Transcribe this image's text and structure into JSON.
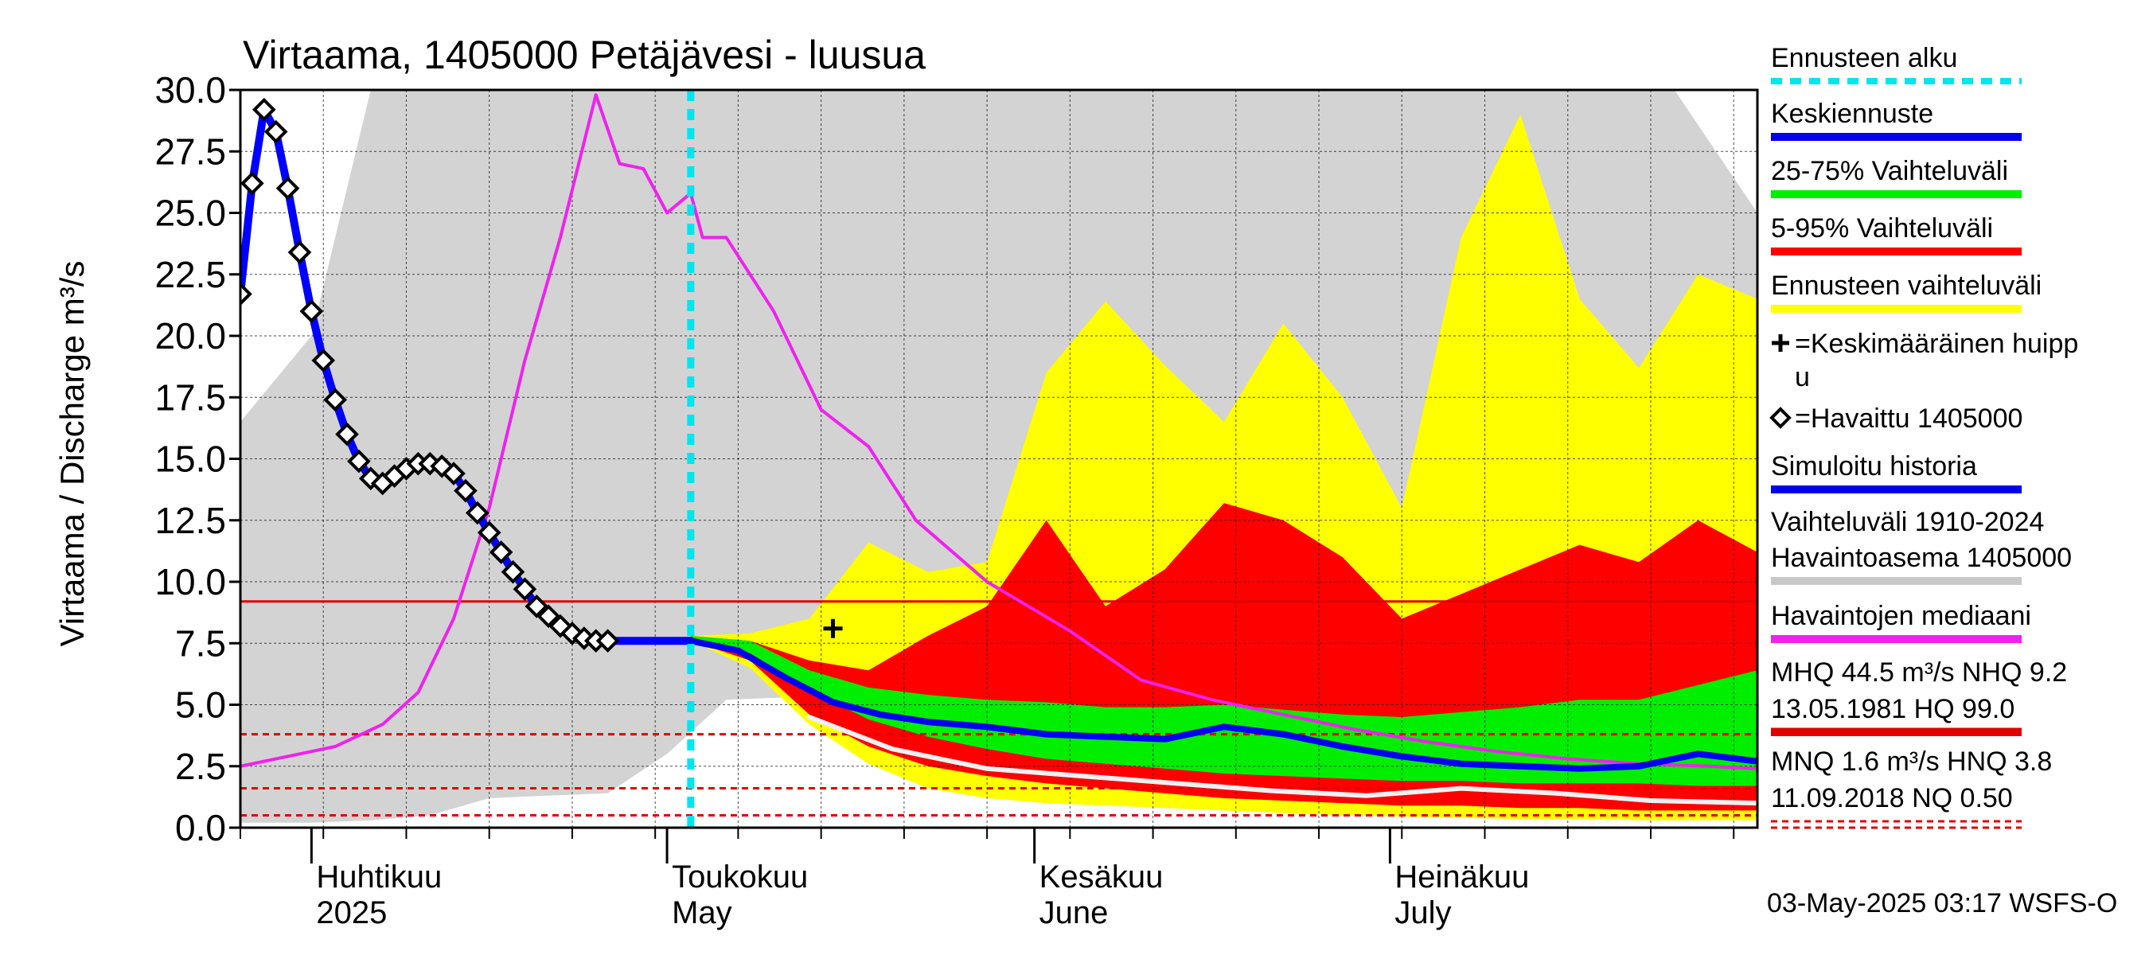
{
  "chart_data": {
    "type": "area",
    "title": "Virtaama, 1405000 Petäjävesi - luusua",
    "ylabel": "Virtaama / Discharge   m³/s",
    "ylim": [
      0,
      30
    ],
    "xlim": [
      "2025-03-26",
      "2025-08-01"
    ],
    "grid": true,
    "legend_placement": "right",
    "y_ticks": [
      "0.0",
      "2.5",
      "5.0",
      "7.5",
      "10.0",
      "12.5",
      "15.0",
      "17.5",
      "20.0",
      "22.5",
      "25.0",
      "27.5",
      "30.0"
    ],
    "month_labels": [
      {
        "date": "2025-04-01",
        "line1": "Huhtikuu",
        "line2": "2025"
      },
      {
        "date": "2025-05-01",
        "line1": "Toukokuu",
        "line2": "May"
      },
      {
        "date": "2025-06-01",
        "line1": "Kesäkuu",
        "line2": "June"
      },
      {
        "date": "2025-07-01",
        "line1": "Heinäkuu",
        "line2": "July"
      }
    ],
    "forecast_start": "2025-05-03",
    "reference_lines": [
      {
        "name": "NHQ",
        "value": 9.2,
        "style": "solid",
        "color": "#e00000"
      },
      {
        "name": "HNQ",
        "value": 3.8,
        "style": "dashed",
        "color": "#e00000"
      },
      {
        "name": "MNQ",
        "value": 1.6,
        "style": "dashed",
        "color": "#e00000"
      },
      {
        "name": "NQ",
        "value": 0.5,
        "style": "dashed",
        "color": "#e00000"
      }
    ],
    "average_peak": {
      "date": "2025-05-15",
      "value": 8.1
    },
    "x_dates": [
      "2025-03-26",
      "2025-04-01",
      "2025-04-06",
      "2025-04-11",
      "2025-04-16",
      "2025-04-21",
      "2025-04-26",
      "2025-05-01",
      "2025-05-06",
      "2025-05-11",
      "2025-05-16",
      "2025-05-21",
      "2025-05-26",
      "2025-05-31",
      "2025-06-05",
      "2025-06-10",
      "2025-06-15",
      "2025-06-20",
      "2025-06-25",
      "2025-06-30",
      "2025-07-05",
      "2025-07-10",
      "2025-07-15",
      "2025-07-20",
      "2025-07-25",
      "2025-08-01"
    ],
    "historical_range": {
      "upper": [
        16.5,
        20,
        30,
        30,
        30,
        30,
        30,
        30,
        30,
        30,
        30,
        30,
        30,
        30,
        30,
        30,
        30,
        30,
        30,
        30,
        30,
        30,
        30,
        30,
        30,
        25
      ],
      "lower": [
        0.2,
        0.2,
        0.3,
        0.5,
        1.2,
        1.3,
        1.4,
        3.0,
        5.2,
        5.3,
        4.8,
        3.8,
        3.0,
        2.4,
        2.0,
        1.8,
        1.6,
        1.4,
        1.2,
        1.0,
        0.9,
        0.8,
        0.7,
        0.6,
        0.5,
        0.5
      ]
    },
    "series": [
      {
        "name": "Ennusteen vaihteluväli",
        "color": "#ffff00",
        "dates": [
          "2025-05-03",
          "2025-05-08",
          "2025-05-13",
          "2025-05-18",
          "2025-05-23",
          "2025-05-28",
          "2025-06-02",
          "2025-06-07",
          "2025-06-12",
          "2025-06-17",
          "2025-06-22",
          "2025-06-27",
          "2025-07-02",
          "2025-07-07",
          "2025-07-12",
          "2025-07-17",
          "2025-07-22",
          "2025-07-27",
          "2025-08-01"
        ],
        "upper": [
          7.8,
          7.9,
          8.5,
          11.6,
          10.4,
          10.8,
          18.5,
          21.4,
          18.8,
          16.5,
          20.5,
          17.5,
          13.0,
          24.0,
          29.0,
          21.5,
          18.7,
          22.5,
          21.5
        ],
        "lower": [
          7.6,
          6.5,
          4.2,
          2.6,
          1.6,
          1.2,
          1.0,
          0.9,
          0.8,
          0.7,
          0.6,
          0.5,
          0.45,
          0.4,
          0.35,
          0.35,
          0.3,
          0.3,
          0.3
        ]
      },
      {
        "name": "5-95% Vaihteluväli",
        "color": "#ff0000",
        "dates": [
          "2025-05-03",
          "2025-05-08",
          "2025-05-13",
          "2025-05-18",
          "2025-05-23",
          "2025-05-28",
          "2025-06-02",
          "2025-06-07",
          "2025-06-12",
          "2025-06-17",
          "2025-06-22",
          "2025-06-27",
          "2025-07-02",
          "2025-07-07",
          "2025-07-12",
          "2025-07-17",
          "2025-07-22",
          "2025-07-27",
          "2025-08-01"
        ],
        "upper": [
          7.8,
          7.6,
          6.8,
          6.4,
          7.8,
          9.0,
          12.5,
          9.0,
          10.5,
          13.2,
          12.5,
          11.0,
          8.5,
          9.5,
          10.5,
          11.5,
          10.8,
          12.5,
          11.2
        ],
        "lower": [
          7.6,
          6.8,
          4.6,
          3.3,
          2.5,
          2.1,
          1.8,
          1.6,
          1.4,
          1.2,
          1.1,
          1.0,
          0.9,
          0.9,
          0.8,
          0.8,
          0.7,
          0.7,
          0.7
        ]
      },
      {
        "name": "25-75% Vaihteluväli",
        "color": "#00ee00",
        "dates": [
          "2025-05-03",
          "2025-05-08",
          "2025-05-13",
          "2025-05-18",
          "2025-05-23",
          "2025-05-28",
          "2025-06-02",
          "2025-06-07",
          "2025-06-12",
          "2025-06-17",
          "2025-06-22",
          "2025-06-27",
          "2025-07-02",
          "2025-07-07",
          "2025-07-12",
          "2025-07-17",
          "2025-07-22",
          "2025-07-27",
          "2025-08-01"
        ],
        "upper": [
          7.8,
          7.6,
          6.4,
          5.7,
          5.4,
          5.2,
          5.1,
          4.9,
          4.9,
          5.0,
          4.8,
          4.6,
          4.5,
          4.7,
          4.9,
          5.2,
          5.2,
          5.8,
          6.4
        ],
        "lower": [
          7.6,
          7.1,
          5.6,
          4.4,
          3.7,
          3.2,
          2.8,
          2.6,
          2.4,
          2.2,
          2.1,
          2.0,
          1.9,
          1.9,
          1.8,
          1.8,
          1.8,
          1.7,
          1.7
        ]
      },
      {
        "name": "Havaintojen mediaani",
        "color": "#ee22ee",
        "dates": [
          "2025-03-26",
          "2025-03-31",
          "2025-04-03",
          "2025-04-07",
          "2025-04-10",
          "2025-04-13",
          "2025-04-16",
          "2025-04-19",
          "2025-04-22",
          "2025-04-25",
          "2025-04-27",
          "2025-04-29",
          "2025-05-01",
          "2025-05-03",
          "2025-05-04",
          "2025-05-06",
          "2025-05-10",
          "2025-05-14",
          "2025-05-18",
          "2025-05-22",
          "2025-05-28",
          "2025-06-04",
          "2025-06-10",
          "2025-06-16",
          "2025-06-22",
          "2025-06-28",
          "2025-07-04",
          "2025-07-10",
          "2025-07-16",
          "2025-07-22",
          "2025-07-28",
          "2025-08-01"
        ],
        "values": [
          2.5,
          3.0,
          3.3,
          4.2,
          5.5,
          8.5,
          13.0,
          19.0,
          24.0,
          29.8,
          27.0,
          26.8,
          25.0,
          25.8,
          24.0,
          24.0,
          21.0,
          17.0,
          15.5,
          12.5,
          10.0,
          8.0,
          6.0,
          5.2,
          4.6,
          4.0,
          3.5,
          3.1,
          2.8,
          2.6,
          2.5,
          2.4
        ]
      },
      {
        "name": "Simuloitu historia",
        "color": "#0000ff",
        "dates": [
          "2025-03-26",
          "2025-03-27",
          "2025-03-28",
          "2025-03-29",
          "2025-03-30",
          "2025-03-31",
          "2025-04-01",
          "2025-04-02",
          "2025-04-03",
          "2025-04-04",
          "2025-04-05",
          "2025-04-06",
          "2025-04-07",
          "2025-04-08",
          "2025-04-09",
          "2025-04-10",
          "2025-04-11",
          "2025-04-12",
          "2025-04-13",
          "2025-04-14",
          "2025-04-15",
          "2025-04-16",
          "2025-04-17",
          "2025-04-18",
          "2025-04-19",
          "2025-04-20",
          "2025-04-21",
          "2025-04-22",
          "2025-04-23",
          "2025-04-24",
          "2025-04-25",
          "2025-04-26",
          "2025-04-27",
          "2025-04-28",
          "2025-04-29",
          "2025-04-30",
          "2025-05-01",
          "2025-05-02",
          "2025-05-03"
        ],
        "values": [
          21.7,
          26.2,
          29.2,
          28.3,
          26.0,
          23.4,
          21.0,
          19.0,
          17.4,
          16.0,
          14.9,
          14.2,
          14.0,
          14.3,
          14.6,
          14.8,
          14.8,
          14.7,
          14.4,
          13.7,
          12.8,
          12.0,
          11.2,
          10.4,
          9.7,
          9.0,
          8.6,
          8.2,
          7.9,
          7.7,
          7.6,
          7.6,
          7.6,
          7.6,
          7.6,
          7.6,
          7.6,
          7.6,
          7.6
        ]
      },
      {
        "name": "Keskiennuste",
        "color": "#0000ee",
        "dates": [
          "2025-05-03",
          "2025-05-07",
          "2025-05-11",
          "2025-05-15",
          "2025-05-19",
          "2025-05-23",
          "2025-05-28",
          "2025-06-02",
          "2025-06-07",
          "2025-06-12",
          "2025-06-17",
          "2025-06-22",
          "2025-06-27",
          "2025-07-02",
          "2025-07-07",
          "2025-07-12",
          "2025-07-17",
          "2025-07-22",
          "2025-07-27",
          "2025-08-01"
        ],
        "values": [
          7.6,
          7.2,
          6.1,
          5.1,
          4.6,
          4.3,
          4.1,
          3.8,
          3.7,
          3.6,
          4.1,
          3.8,
          3.3,
          2.9,
          2.6,
          2.5,
          2.4,
          2.5,
          3.0,
          2.7
        ]
      },
      {
        "name": "Havaittu 1405000",
        "color": "#000000",
        "dates": [
          "2025-03-26",
          "2025-03-27",
          "2025-03-28",
          "2025-03-29",
          "2025-03-30",
          "2025-03-31",
          "2025-04-01",
          "2025-04-02",
          "2025-04-03",
          "2025-04-04",
          "2025-04-05",
          "2025-04-06",
          "2025-04-07",
          "2025-04-08",
          "2025-04-09",
          "2025-04-10",
          "2025-04-11",
          "2025-04-12",
          "2025-04-13",
          "2025-04-14",
          "2025-04-15",
          "2025-04-16",
          "2025-04-17",
          "2025-04-18",
          "2025-04-19",
          "2025-04-20",
          "2025-04-21",
          "2025-04-22",
          "2025-04-23",
          "2025-04-24",
          "2025-04-25",
          "2025-04-26"
        ],
        "values": [
          21.7,
          26.2,
          29.2,
          28.3,
          26.0,
          23.4,
          21.0,
          19.0,
          17.4,
          16.0,
          14.9,
          14.2,
          14.0,
          14.3,
          14.6,
          14.8,
          14.8,
          14.7,
          14.4,
          13.7,
          12.8,
          12.0,
          11.2,
          10.4,
          9.7,
          9.0,
          8.6,
          8.2,
          7.9,
          7.7,
          7.6,
          7.6
        ]
      },
      {
        "name": "Keskimääräinen huippu",
        "color": "#000000",
        "dates": [
          "2025-05-15"
        ],
        "values": [
          8.1
        ]
      },
      {
        "name": "Low-flow white",
        "color": "#f0f0f0",
        "dates": [
          "2025-05-13",
          "2025-05-20",
          "2025-05-28",
          "2025-06-05",
          "2025-06-13",
          "2025-06-21",
          "2025-06-29",
          "2025-07-07",
          "2025-07-15",
          "2025-07-23",
          "2025-08-01"
        ],
        "values": [
          4.5,
          3.2,
          2.4,
          2.1,
          1.8,
          1.5,
          1.3,
          1.6,
          1.4,
          1.1,
          1.0
        ]
      }
    ],
    "legend": [
      {
        "label": "Ennusteen alku",
        "kind": "dash",
        "color": "#00e5ee"
      },
      {
        "label": "Keskiennuste",
        "kind": "line",
        "color": "#0000ee"
      },
      {
        "label": "25-75% Vaihteluväli",
        "kind": "line",
        "color": "#00ee00"
      },
      {
        "label": "5-95% Vaihteluväli",
        "kind": "line",
        "color": "#ff0000"
      },
      {
        "label": "Ennusteen vaihteluväli",
        "kind": "line",
        "color": "#ffff00"
      },
      {
        "label": "=Keskimääräinen huipp",
        "label2": "u",
        "kind": "plus",
        "color": "#000000"
      },
      {
        "label": "=Havaittu 1405000",
        "kind": "diamond",
        "color": "#000000"
      },
      {
        "label": "Simuloitu historia",
        "kind": "line",
        "color": "#0000ee"
      },
      {
        "label": "Vaihteluväli 1910-2024",
        "label2": " Havaintoasema 1405000",
        "kind": "line",
        "color": "#c8c8c8"
      },
      {
        "label": "Havaintojen mediaani",
        "kind": "line",
        "color": "#ee22ee"
      },
      {
        "label": "MHQ 44.5 m³/s NHQ  9.2",
        "label2": "13.05.1981 HQ 99.0",
        "kind": "line",
        "color": "#e00000"
      },
      {
        "label": "MNQ  1.6 m³/s HNQ  3.8",
        "label2": "11.09.2018 NQ 0.50",
        "kind": "dashedline",
        "color": "#e00000"
      }
    ],
    "footer": "03-May-2025 03:17 WSFS-O"
  }
}
